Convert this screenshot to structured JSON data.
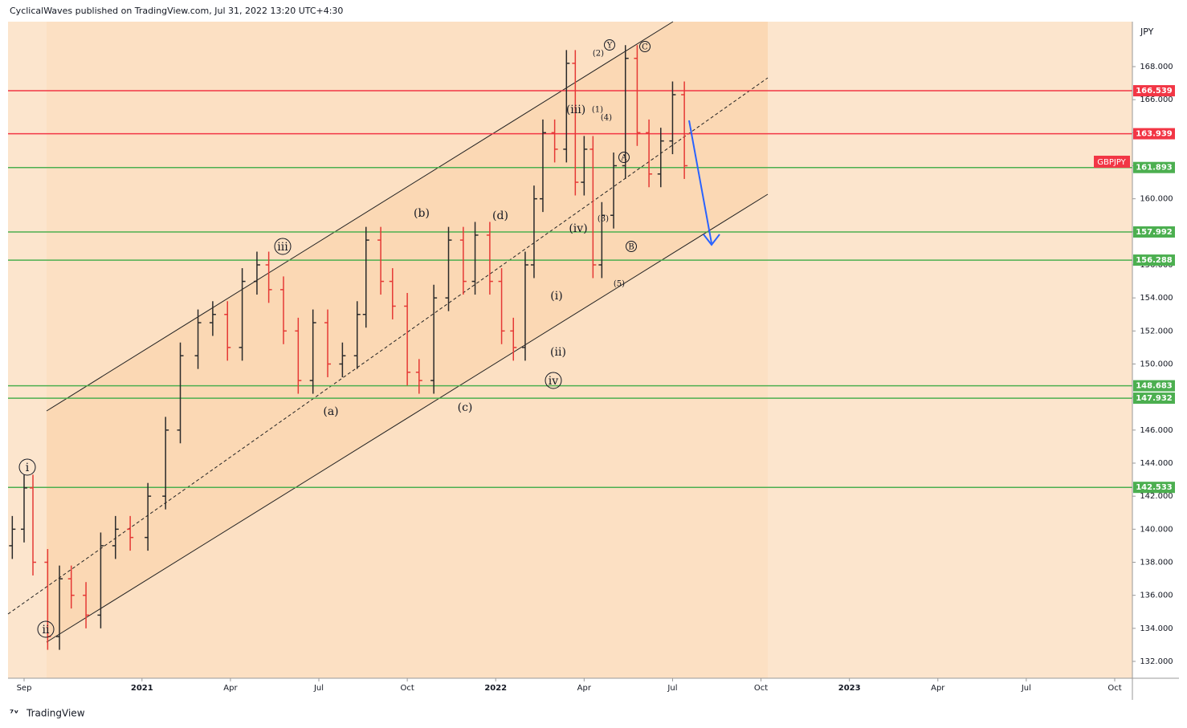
{
  "header": "CyclicalWaves published on TradingView.com, Jul 31, 2022 13:20 UTC+4:30",
  "footer": "TradingView",
  "chart_data": {
    "type": "ohlc",
    "symbol": "GBPJPY",
    "currency": "JPY",
    "up_color": "#2a2a2a",
    "down_color": "#e53935",
    "xlim": [
      -0.545,
      37.6
    ],
    "xticks": [
      {
        "value": 0,
        "label": "Sep"
      },
      {
        "value": 4,
        "label": "2021"
      },
      {
        "value": 7,
        "label": "Apr"
      },
      {
        "value": 10,
        "label": "Jul"
      },
      {
        "value": 13,
        "label": "Oct"
      },
      {
        "value": 16,
        "label": "2022"
      },
      {
        "value": 19,
        "label": "Apr"
      },
      {
        "value": 22,
        "label": "Jul"
      },
      {
        "value": 25,
        "label": "Oct"
      },
      {
        "value": 28,
        "label": "2023"
      },
      {
        "value": 31,
        "label": "Apr"
      },
      {
        "value": 34,
        "label": "Jul"
      },
      {
        "value": 37,
        "label": "Oct"
      }
    ],
    "ylim": [
      130.98,
      170.72
    ],
    "yticks": [
      {
        "value": 132,
        "label": "132.000"
      },
      {
        "value": 134,
        "label": "134.000"
      },
      {
        "value": 136,
        "label": "136.000"
      },
      {
        "value": 138,
        "label": "138.000"
      },
      {
        "value": 140,
        "label": "140.000"
      },
      {
        "value": 142,
        "label": "142.000"
      },
      {
        "value": 144,
        "label": "144.000"
      },
      {
        "value": 146,
        "label": "146.000"
      },
      {
        "value": 148,
        "label": "148.000"
      },
      {
        "value": 150,
        "label": "150.000"
      },
      {
        "value": 152,
        "label": "152.000"
      },
      {
        "value": 154,
        "label": "154.000"
      },
      {
        "value": 156,
        "label": "156.000"
      },
      {
        "value": 158,
        "label": "158.000"
      },
      {
        "value": 160,
        "label": "160.000"
      },
      {
        "value": 162,
        "label": "162.000"
      },
      {
        "value": 164,
        "label": "164.000"
      },
      {
        "value": 166,
        "label": "166.000"
      },
      {
        "value": 168,
        "label": "168.000"
      }
    ],
    "levels": [
      {
        "value": 166.539,
        "color": "#f23645"
      },
      {
        "value": 163.939,
        "color": "#f23645"
      },
      {
        "value": 161.893,
        "color": "#4caf50"
      },
      {
        "value": 157.992,
        "color": "#4caf50"
      },
      {
        "value": 156.288,
        "color": "#4caf50"
      },
      {
        "value": 148.683,
        "color": "#4caf50"
      },
      {
        "value": 147.932,
        "color": "#4caf50"
      },
      {
        "value": 142.533,
        "color": "#4caf50"
      }
    ],
    "x": [
      -0.4,
      0,
      0.3,
      0.8,
      1.2,
      1.6,
      2.1,
      2.6,
      3.1,
      3.6,
      4.2,
      4.8,
      5.3,
      5.9,
      6.4,
      6.9,
      7.4,
      7.9,
      8.3,
      8.8,
      9.3,
      9.8,
      10.3,
      10.8,
      11.3,
      11.6,
      12.1,
      12.5,
      13.0,
      13.4,
      13.9,
      14.4,
      14.9,
      15.3,
      15.8,
      16.2,
      16.6,
      17.0,
      17.3,
      17.6,
      18.0,
      18.4,
      18.7,
      19.0,
      19.3,
      19.6,
      20.0,
      20.4,
      20.8,
      21.2,
      21.6,
      22.0,
      22.4
    ],
    "open": [
      139,
      140,
      142.5,
      138,
      133.5,
      137,
      136,
      134.8,
      139,
      140,
      139.5,
      142,
      146,
      150.5,
      152.5,
      153,
      151,
      155,
      156,
      154.5,
      152,
      149,
      152.5,
      150,
      150.5,
      153,
      157.5,
      155,
      153.5,
      149.5,
      149,
      154,
      157.5,
      155,
      157.8,
      155,
      152,
      151,
      156,
      160,
      164,
      163,
      168.2,
      161,
      163,
      156,
      159,
      162,
      168.5,
      164,
      161.5,
      163.5,
      166.3
    ],
    "high": [
      140.8,
      143.3,
      143.3,
      138.8,
      137.8,
      137.8,
      136.8,
      139.8,
      140.8,
      140.8,
      142.8,
      146.8,
      151.3,
      153.3,
      153.8,
      153.8,
      155.8,
      156.8,
      156.8,
      155.3,
      152.8,
      153.3,
      153.3,
      151.3,
      153.8,
      158.3,
      158.3,
      155.8,
      154.3,
      150.3,
      154.8,
      158.3,
      158.3,
      158.6,
      158.6,
      155.8,
      152.8,
      156.8,
      160.8,
      164.8,
      164.8,
      169,
      169,
      163.8,
      163.8,
      159.8,
      162.8,
      169.3,
      169.3,
      164.8,
      164.3,
      167.1,
      167.1
    ],
    "low": [
      138.2,
      139.2,
      137.2,
      132.7,
      132.7,
      135.2,
      134,
      134,
      138.2,
      138.7,
      138.7,
      141.2,
      145.2,
      149.7,
      151.7,
      150.2,
      150.2,
      154.2,
      153.7,
      151.2,
      148.2,
      148.2,
      149.2,
      149.2,
      149.7,
      152.2,
      154.2,
      152.7,
      148.7,
      148.2,
      148.2,
      153.2,
      154.2,
      154.2,
      154.2,
      151.2,
      150.2,
      150.2,
      155.2,
      159.2,
      162.2,
      162.2,
      160.2,
      160.2,
      155.2,
      155.2,
      158.2,
      161.2,
      163.2,
      160.7,
      160.7,
      162.7,
      161.2
    ],
    "close": [
      140,
      142.5,
      138,
      133.5,
      137,
      136,
      134.8,
      139,
      140,
      139.5,
      142,
      146,
      150.5,
      152.5,
      153,
      151,
      155,
      156,
      154.5,
      152,
      149,
      152.5,
      150,
      150.5,
      153,
      157.5,
      155,
      153.5,
      149.5,
      149,
      154,
      157.5,
      155,
      157.8,
      155,
      152,
      151,
      156,
      160,
      164,
      163,
      168.2,
      161,
      163,
      156,
      159,
      162,
      168.5,
      164,
      161.5,
      163.5,
      166.3,
      162
    ],
    "annotations": [
      {
        "text": "i",
        "circled": true
      },
      {
        "text": "ii",
        "circled": true
      },
      {
        "text": "iii",
        "circled": true
      },
      {
        "text": "(a)",
        "circled": false
      },
      {
        "text": "(b)",
        "circled": false
      },
      {
        "text": "(c)",
        "circled": false
      },
      {
        "text": "(d)",
        "circled": false
      },
      {
        "text": "iv",
        "circled": true
      },
      {
        "text": "(i)",
        "circled": false
      },
      {
        "text": "(ii)",
        "circled": false
      },
      {
        "text": "(iii)",
        "circled": false
      },
      {
        "text": "(iv)",
        "circled": false
      },
      {
        "text": "(1)",
        "circled": false
      },
      {
        "text": "(2)",
        "circled": false
      },
      {
        "text": "(3)",
        "circled": false
      },
      {
        "text": "(4)",
        "circled": false
      },
      {
        "text": "(5)",
        "circled": false
      },
      {
        "text": "Y",
        "circled": true
      },
      {
        "text": "A",
        "circled": true
      },
      {
        "text": "B",
        "circled": true
      },
      {
        "text": "C",
        "circled": true
      }
    ]
  }
}
